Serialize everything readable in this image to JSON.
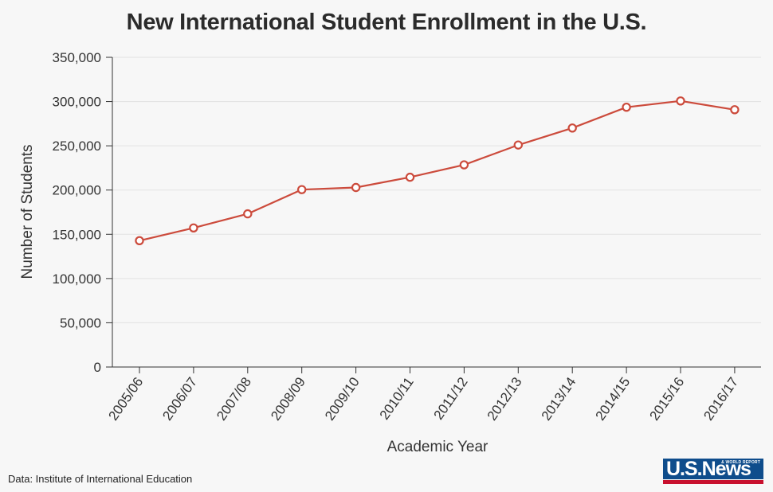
{
  "chart_data": {
    "type": "line",
    "title": "New International Student Enrollment in the U.S.",
    "xlabel": "Academic Year",
    "ylabel": "Number of Students",
    "categories": [
      "2005/06",
      "2006/07",
      "2007/08",
      "2008/09",
      "2009/10",
      "2010/11",
      "2011/12",
      "2012/13",
      "2013/14",
      "2014/15",
      "2015/16",
      "2016/17"
    ],
    "series": [
      {
        "values": [
          142800,
          157200,
          173100,
          200500,
          202900,
          214500,
          228500,
          250900,
          270100,
          293600,
          300700,
          290800
        ]
      }
    ],
    "ylim": [
      0,
      350000
    ],
    "yticks": [
      0,
      50000,
      100000,
      150000,
      200000,
      250000,
      300000,
      350000
    ],
    "ytick_labels": [
      "0",
      "50,000",
      "100,000",
      "150,000",
      "200,000",
      "250,000",
      "300,000",
      "350,000"
    ],
    "grid": "horizontal",
    "line_color": "#cc4b3c",
    "marker": "hollow-circle"
  },
  "source": "Data: Institute of International Education",
  "logo": {
    "text": "U.S.News",
    "small_text": "& WORLD REPORT",
    "brand_blue": "#0f4d8c",
    "brand_red": "#c8102e"
  }
}
